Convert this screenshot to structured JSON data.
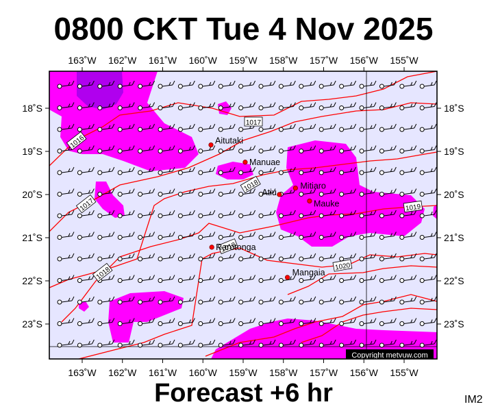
{
  "header": {
    "title": "0800 CKT Tue 4 Nov 2025"
  },
  "footer": {
    "forecast": "Forecast +6 hr",
    "image_code": "IM2"
  },
  "copyright": "Copyright metvuw.com",
  "map": {
    "lon_ticks": [
      "163˚W",
      "162˚W",
      "161˚W",
      "160˚W",
      "159˚W",
      "158˚W",
      "157˚W",
      "156˚W",
      "155˚W"
    ],
    "lat_ticks": [
      "18˚S",
      "19˚S",
      "20˚S",
      "21˚S",
      "22˚S",
      "23˚S"
    ],
    "places": [
      {
        "name": "Aitutaki",
        "lon": -159.8,
        "lat": -18.85
      },
      {
        "name": "Manuae",
        "lon": -158.95,
        "lat": -19.25
      },
      {
        "name": "Mitiaro",
        "lon": -157.7,
        "lat": -19.85
      },
      {
        "name": "Atiu",
        "lon": -158.1,
        "lat": -20.0
      },
      {
        "name": "Mauke",
        "lon": -157.35,
        "lat": -20.15
      },
      {
        "name": "Rarotonga",
        "lon": -159.78,
        "lat": -21.22
      },
      {
        "name": "Mangaia",
        "lon": -157.9,
        "lat": -21.92
      }
    ],
    "isobars": [
      {
        "label": "1016"
      },
      {
        "label": "1017"
      },
      {
        "label": "1017"
      },
      {
        "label": "1018"
      },
      {
        "label": "1018"
      },
      {
        "label": "1018"
      },
      {
        "label": "1019"
      },
      {
        "label": "1020"
      }
    ],
    "colors": {
      "background": "#e6e6ff",
      "rain_light": "#ff00ff",
      "rain_heavy": "#b000ee",
      "isobar": "#ff0000",
      "place_dot": "#ff0000"
    }
  }
}
